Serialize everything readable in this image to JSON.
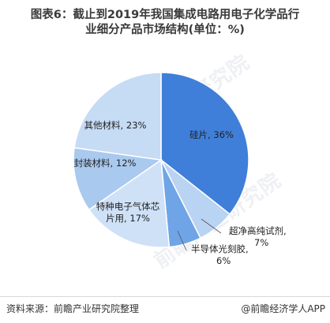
{
  "header": {
    "title_line1": "图表6：截止到2019年我国集成电路用电子化学品行",
    "title_line2": "业细分产品市场结构(单位：%)"
  },
  "footer": {
    "source": "资料来源：前瞻产业研究院整理",
    "credit": "@前瞻经济学人APP"
  },
  "watermarks": [
    "前瞻产业研究院",
    "前瞻产业研究院"
  ],
  "chart_data": {
    "type": "pie",
    "title": "截止到2019年我国集成电路用电子化学品行业细分产品市场结构(单位：%)",
    "unit": "%",
    "slices": [
      {
        "label": "硅片",
        "value": 36,
        "color": "#3f7fd9",
        "text": "硅片, 36%"
      },
      {
        "label": "超净高纯试剂",
        "value": 7,
        "color": "#b9d3f3",
        "text_lines": [
          "超净高纯试剂,",
          "7%"
        ]
      },
      {
        "label": "半导体光刻胶",
        "value": 6,
        "color": "#6fa4e6",
        "text_lines": [
          "半导体光刻胶,",
          "6%"
        ]
      },
      {
        "label": "特种电子气体芯片用",
        "value": 17,
        "color": "#cfe1f7",
        "text_lines": [
          "特种电子气体芯",
          "片用, 17%"
        ]
      },
      {
        "label": "封装材料",
        "value": 12,
        "color": "#a9c9ef",
        "text": "封装材料, 12%"
      },
      {
        "label": "其他材料",
        "value": 23,
        "color": "#c6dbf4",
        "text": "其他材料, 23%"
      }
    ]
  }
}
